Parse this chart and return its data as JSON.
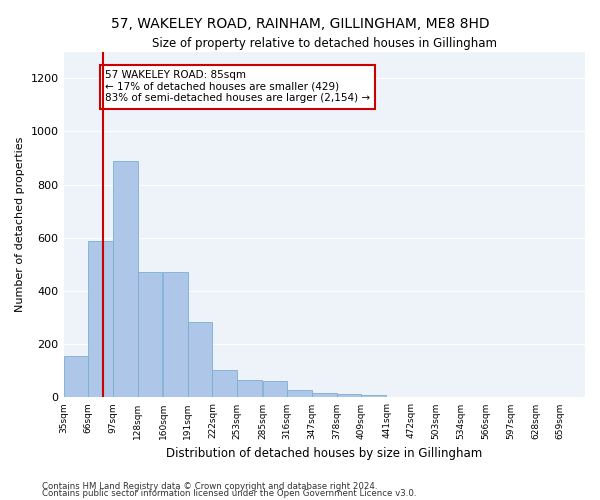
{
  "title": "57, WAKELEY ROAD, RAINHAM, GILLINGHAM, ME8 8HD",
  "subtitle": "Size of property relative to detached houses in Gillingham",
  "xlabel": "Distribution of detached houses by size in Gillingham",
  "ylabel": "Number of detached properties",
  "bar_color": "#aec6e8",
  "bar_edge_color": "#7aafd4",
  "vline_color": "#cc0000",
  "vline_x": 85,
  "categories": [
    "35sqm",
    "66sqm",
    "97sqm",
    "128sqm",
    "160sqm",
    "191sqm",
    "222sqm",
    "253sqm",
    "285sqm",
    "316sqm",
    "347sqm",
    "378sqm",
    "409sqm",
    "441sqm",
    "472sqm",
    "503sqm",
    "534sqm",
    "566sqm",
    "597sqm",
    "628sqm",
    "659sqm"
  ],
  "bin_edges": [
    35,
    66,
    97,
    128,
    160,
    191,
    222,
    253,
    285,
    316,
    347,
    378,
    409,
    441,
    472,
    503,
    534,
    566,
    597,
    628,
    659
  ],
  "values": [
    155,
    590,
    890,
    470,
    470,
    285,
    105,
    65,
    62,
    27,
    18,
    14,
    10,
    0,
    0,
    0,
    0,
    0,
    0,
    0,
    0
  ],
  "ylim": [
    0,
    1300
  ],
  "yticks": [
    0,
    200,
    400,
    600,
    800,
    1000,
    1200
  ],
  "annotation_text": "57 WAKELEY ROAD: 85sqm\n← 17% of detached houses are smaller (429)\n83% of semi-detached houses are larger (2,154) →",
  "annotation_box_color": "#ffffff",
  "annotation_box_edge": "#cc0000",
  "footnote1": "Contains HM Land Registry data © Crown copyright and database right 2024.",
  "footnote2": "Contains public sector information licensed under the Open Government Licence v3.0.",
  "background_color": "#eef2f9"
}
